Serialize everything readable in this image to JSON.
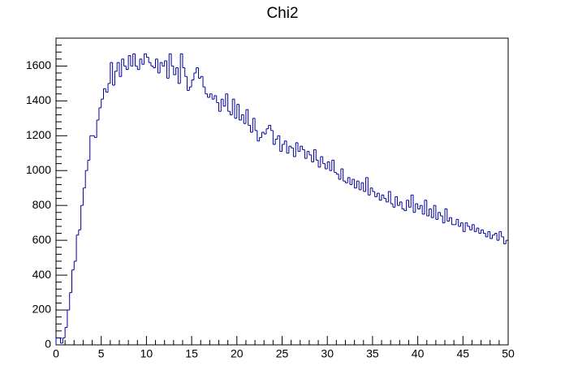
{
  "chart_data": {
    "type": "histogram",
    "title": "Chi2",
    "color": "#000099",
    "bins": [
      0,
      0.25,
      0.5,
      0.75,
      1,
      1.25,
      1.5,
      1.75,
      2,
      2.25,
      2.5,
      2.75,
      3,
      3.25,
      3.5,
      3.75,
      4,
      4.25,
      4.5,
      4.75,
      5,
      5.25,
      5.5,
      5.75,
      6,
      6.25,
      6.5,
      6.75,
      7,
      7.25,
      7.5,
      7.75,
      8,
      8.25,
      8.5,
      8.75,
      9,
      9.25,
      9.5,
      9.75,
      10,
      10.25,
      10.5,
      10.75,
      11,
      11.25,
      11.5,
      11.75,
      12,
      12.25,
      12.5,
      12.75,
      13,
      13.25,
      13.5,
      13.75,
      14,
      14.25,
      14.5,
      14.75,
      15,
      15.25,
      15.5,
      15.75,
      16,
      16.25,
      16.5,
      16.75,
      17,
      17.25,
      17.5,
      17.75,
      18,
      18.25,
      18.5,
      18.75,
      19,
      19.25,
      19.5,
      19.75,
      20,
      20.25,
      20.5,
      20.75,
      21,
      21.25,
      21.5,
      21.75,
      22,
      22.25,
      22.5,
      22.75,
      23,
      23.25,
      23.5,
      23.75,
      24,
      24.25,
      24.5,
      24.75,
      25,
      25.25,
      25.5,
      25.75,
      26,
      26.25,
      26.5,
      26.75,
      27,
      27.25,
      27.5,
      27.75,
      28,
      28.25,
      28.5,
      28.75,
      29,
      29.25,
      29.5,
      29.75,
      30,
      30.25,
      30.5,
      30.75,
      31,
      31.25,
      31.5,
      31.75,
      32,
      32.25,
      32.5,
      32.75,
      33,
      33.25,
      33.5,
      33.75,
      34,
      34.25,
      34.5,
      34.75,
      35,
      35.25,
      35.5,
      35.75,
      36,
      36.25,
      36.5,
      36.75,
      37,
      37.25,
      37.5,
      37.75,
      38,
      38.25,
      38.5,
      38.75,
      39,
      39.25,
      39.5,
      39.75,
      40,
      40.25,
      40.5,
      40.75,
      41,
      41.25,
      41.5,
      41.75,
      42,
      42.25,
      42.5,
      42.75,
      43,
      43.25,
      43.5,
      43.75,
      44,
      44.25,
      44.5,
      44.75,
      45,
      45.25,
      45.5,
      45.75,
      46,
      46.25,
      46.5,
      46.75,
      47,
      47.25,
      47.5,
      47.75,
      48,
      48.25,
      48.5,
      48.75,
      49,
      49.25,
      49.5,
      49.75,
      50
    ],
    "values": [
      40,
      40,
      10,
      40,
      100,
      200,
      300,
      430,
      480,
      630,
      660,
      800,
      900,
      1000,
      1060,
      1200,
      1200,
      1190,
      1290,
      1360,
      1410,
      1470,
      1450,
      1500,
      1620,
      1490,
      1570,
      1620,
      1540,
      1640,
      1600,
      1580,
      1660,
      1600,
      1670,
      1600,
      1580,
      1640,
      1610,
      1670,
      1650,
      1620,
      1600,
      1590,
      1640,
      1560,
      1620,
      1600,
      1630,
      1530,
      1670,
      1600,
      1550,
      1590,
      1500,
      1670,
      1590,
      1540,
      1460,
      1480,
      1520,
      1560,
      1590,
      1530,
      1540,
      1480,
      1440,
      1420,
      1440,
      1410,
      1430,
      1390,
      1340,
      1410,
      1370,
      1440,
      1340,
      1320,
      1410,
      1300,
      1380,
      1290,
      1320,
      1270,
      1350,
      1260,
      1220,
      1300,
      1230,
      1170,
      1190,
      1220,
      1210,
      1240,
      1260,
      1230,
      1150,
      1180,
      1200,
      1110,
      1150,
      1170,
      1100,
      1140,
      1130,
      1080,
      1160,
      1110,
      1140,
      1120,
      1070,
      1110,
      1090,
      1050,
      1120,
      1060,
      1020,
      1080,
      1040,
      1010,
      1050,
      1000,
      1060,
      990,
      980,
      950,
      1010,
      940,
      930,
      960,
      920,
      950,
      900,
      940,
      890,
      930,
      880,
      960,
      860,
      900,
      880,
      850,
      870,
      830,
      860,
      840,
      820,
      880,
      810,
      790,
      850,
      800,
      820,
      780,
      770,
      830,
      790,
      860,
      760,
      810,
      780,
      800,
      750,
      830,
      740,
      780,
      730,
      800,
      720,
      760,
      740,
      700,
      780,
      710,
      730,
      690,
      690,
      720,
      680,
      700,
      650,
      700,
      680,
      660,
      690,
      650,
      670,
      640,
      660,
      640,
      620,
      650,
      610,
      630,
      640,
      600,
      650,
      620,
      580,
      600
    ],
    "xlim": [
      0,
      50
    ],
    "ylim": [
      0,
      1760
    ],
    "xticks": [
      0,
      5,
      10,
      15,
      20,
      25,
      30,
      35,
      40,
      45,
      50
    ],
    "yticks": [
      0,
      200,
      400,
      600,
      800,
      1000,
      1200,
      1400,
      1600
    ]
  }
}
